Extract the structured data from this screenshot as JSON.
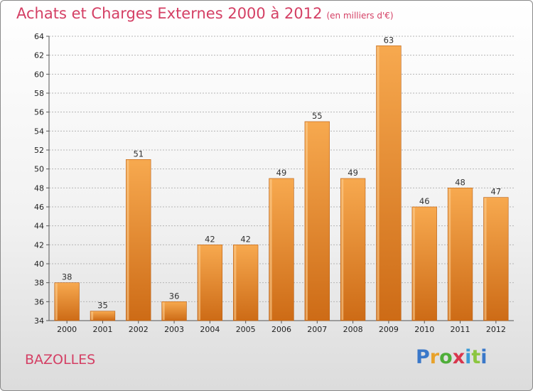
{
  "header": {
    "title": "Achats et Charges Externes 2000 à 2012",
    "unit": "(en milliers d'€)"
  },
  "footer": {
    "place": "BAZOLLES",
    "logo": "Proxiti"
  },
  "colors": {
    "bar_top": "#f7a94f",
    "bar_bottom": "#cd6b16",
    "title": "#d43f64",
    "grid": "#b5b5b5"
  },
  "chart_data": {
    "type": "bar",
    "title": "Achats et Charges Externes 2000 à 2012",
    "subtitle": "(en milliers d'€)",
    "categories": [
      "2000",
      "2001",
      "2002",
      "2003",
      "2004",
      "2005",
      "2006",
      "2007",
      "2008",
      "2009",
      "2010",
      "2011",
      "2012"
    ],
    "values": [
      38,
      35,
      51,
      36,
      42,
      42,
      49,
      55,
      49,
      63,
      46,
      48,
      47
    ],
    "ylim": [
      34,
      64
    ],
    "yticks": [
      34,
      36,
      38,
      40,
      42,
      44,
      46,
      48,
      50,
      52,
      54,
      56,
      58,
      60,
      62,
      64
    ],
    "grid": true,
    "data_labels": true
  }
}
